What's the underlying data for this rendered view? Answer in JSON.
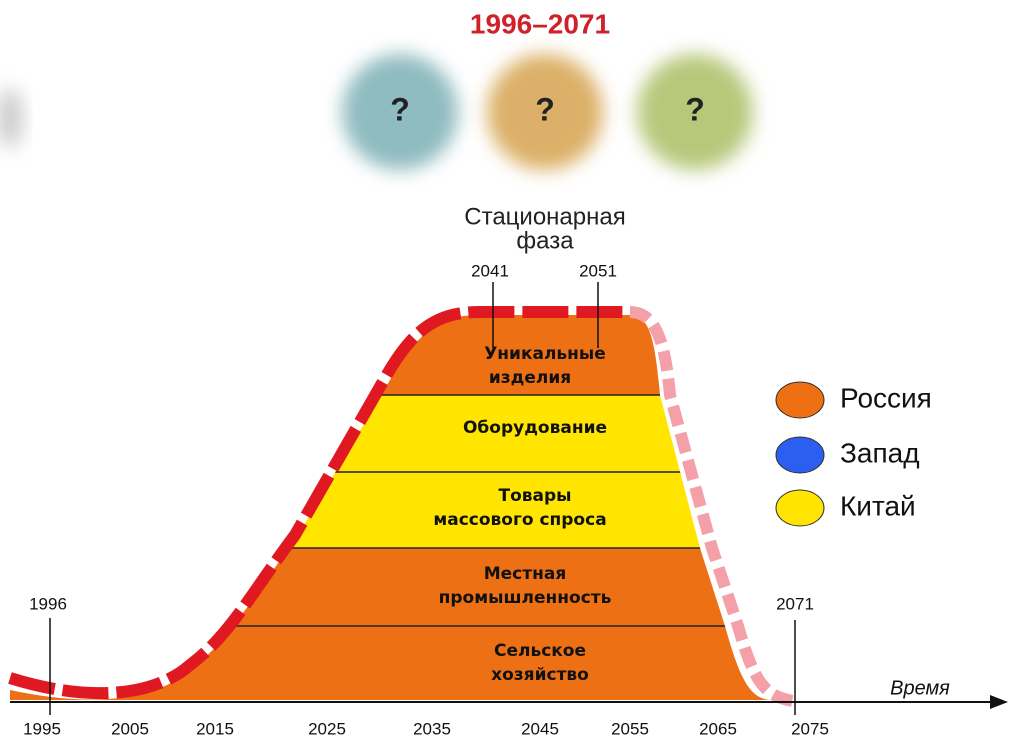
{
  "title": "1996–2071",
  "unknowns": [
    "?",
    "?",
    "?"
  ],
  "phase": {
    "label": [
      "Стационарная",
      "фаза"
    ],
    "start": "2041",
    "end": "2051"
  },
  "layers": [
    {
      "label": [
        "Уникальные",
        "изделия"
      ]
    },
    {
      "label": [
        "Оборудование"
      ]
    },
    {
      "label": [
        "Товары",
        "массового спроса"
      ]
    },
    {
      "label": [
        "Местная",
        "промышленность"
      ]
    },
    {
      "label": [
        "Сельское",
        "хозяйство"
      ]
    }
  ],
  "marks": {
    "start": "1996",
    "end": "2071"
  },
  "axis": {
    "label": "Время",
    "ticks": [
      "1995",
      "2005",
      "2015",
      "2025",
      "2035",
      "2045",
      "2055",
      "2065",
      "2075"
    ]
  },
  "legend": [
    "Россия",
    "Запад",
    "Китай"
  ]
}
